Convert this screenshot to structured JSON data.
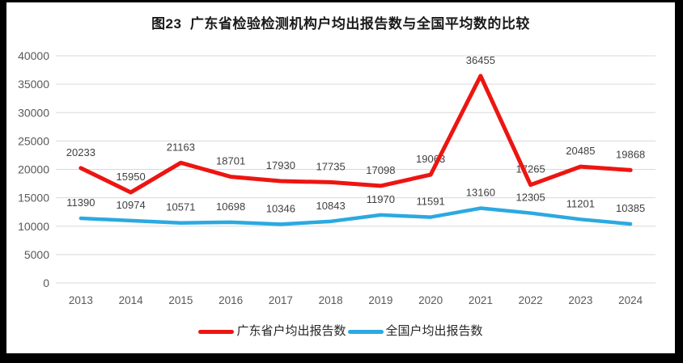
{
  "frame": {
    "border_color": "#000000",
    "background_color": "#ffffff"
  },
  "chart_data": {
    "type": "line",
    "title": "图23  广东省检验检测机构户均出报告数与全国平均数的比较",
    "x": [
      "2013",
      "2014",
      "2015",
      "2016",
      "2017",
      "2018",
      "2019",
      "2020",
      "2021",
      "2022",
      "2023",
      "2024"
    ],
    "series": [
      {
        "name": "广东省户均出报告数",
        "color": "#ed1511",
        "stroke_width": 5,
        "values": [
          20233,
          15950,
          21163,
          18701,
          17930,
          17735,
          17098,
          19063,
          36455,
          17265,
          20485,
          19868
        ]
      },
      {
        "name": "全国户均出报告数",
        "color": "#2ba9e0",
        "stroke_width": 4.5,
        "values": [
          11390,
          10974,
          10571,
          10698,
          10346,
          10843,
          11970,
          11591,
          13160,
          12305,
          11201,
          10385
        ]
      }
    ],
    "ylim": [
      0,
      40000
    ],
    "ytick_step": 5000,
    "grid": true,
    "show_data_labels": true,
    "legend_position": "bottom",
    "colors": {
      "gridline": "#d9d9d9",
      "axis_label": "#595959",
      "data_label": "#404040"
    }
  }
}
